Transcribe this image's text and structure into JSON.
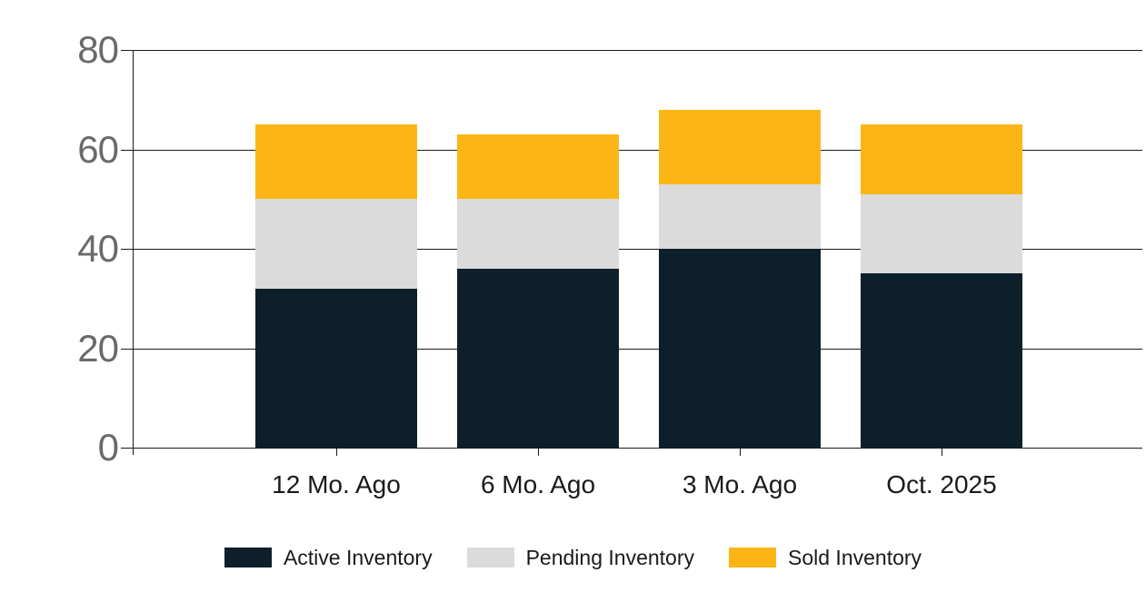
{
  "chart_data": {
    "type": "bar",
    "stacked": true,
    "categories": [
      "12 Mo. Ago",
      "6 Mo. Ago",
      "3 Mo. Ago",
      "Oct. 2025"
    ],
    "series": [
      {
        "name": "Active Inventory",
        "color": "#0C1F2B",
        "values": [
          32,
          36,
          40,
          35
        ]
      },
      {
        "name": "Pending Inventory",
        "color": "#DBDBDB",
        "values": [
          18,
          14,
          13,
          16
        ]
      },
      {
        "name": "Sold Inventory",
        "color": "#FBB616",
        "values": [
          15,
          13,
          15,
          14
        ]
      }
    ],
    "stack_totals": [
      65,
      63,
      68,
      65
    ],
    "ylim": [
      0,
      80
    ],
    "yticks": [
      0,
      20,
      40,
      60,
      80
    ],
    "grid": true,
    "legend_position": "bottom",
    "colors": {
      "axis": "#1a1a1a",
      "ytick_label": "#6a6a6a",
      "xtick_label": "#1a1a1a",
      "background": "#ffffff"
    }
  }
}
